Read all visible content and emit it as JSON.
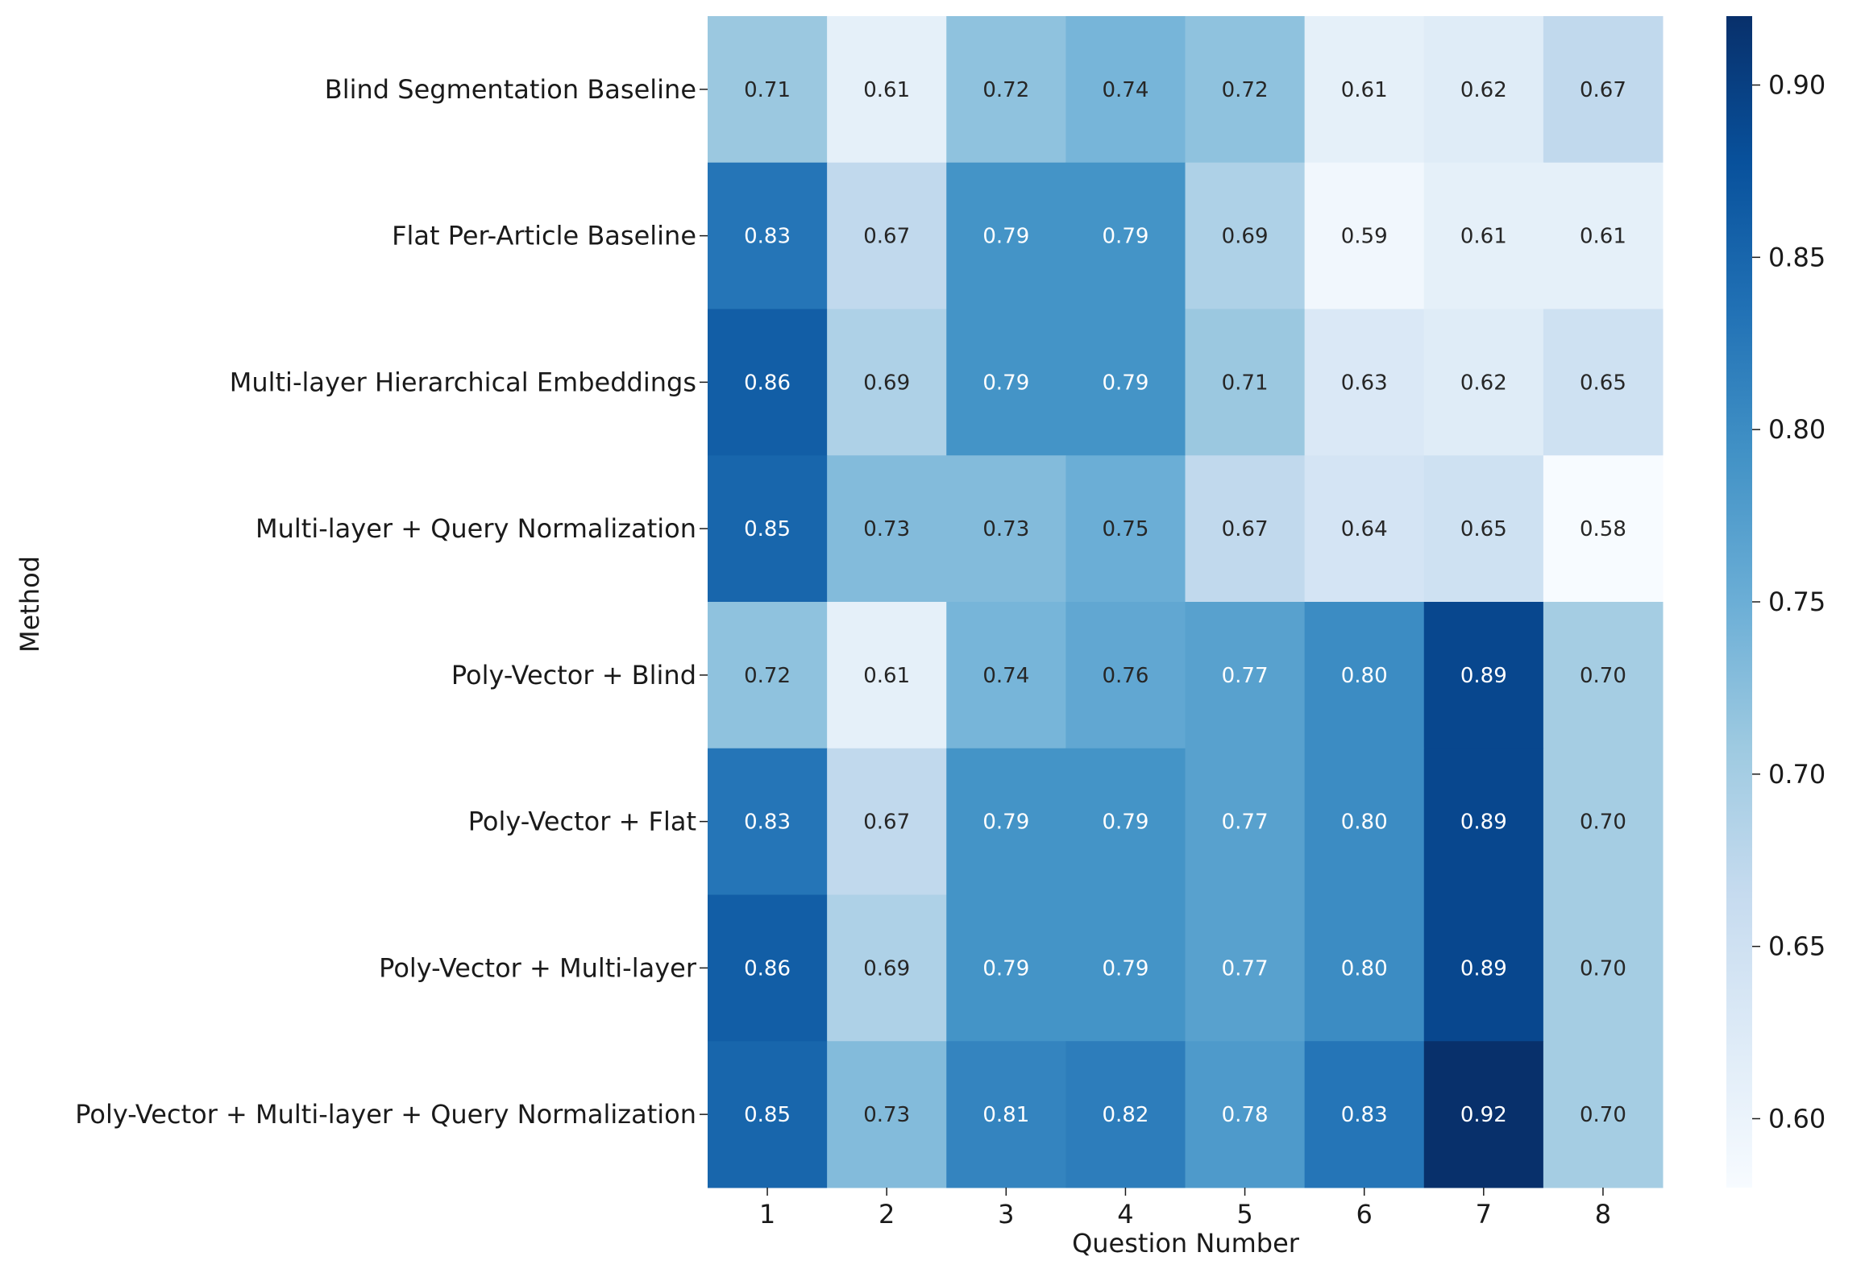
{
  "chart_data": {
    "type": "heatmap",
    "title": "",
    "xlabel": "Question Number",
    "ylabel": "Method",
    "colormap": "Blues",
    "categories": [
      "1",
      "2",
      "3",
      "4",
      "5",
      "6",
      "7",
      "8"
    ],
    "rows": [
      "Blind Segmentation Baseline",
      "Flat Per-Article Baseline",
      "Multi-layer Hierarchical Embeddings",
      "Multi-layer + Query Normalization",
      "Poly-Vector + Blind",
      "Poly-Vector + Flat",
      "Poly-Vector + Multi-layer",
      "Poly-Vector + Multi-layer + Query Normalization"
    ],
    "values": [
      [
        0.71,
        0.61,
        0.72,
        0.74,
        0.72,
        0.61,
        0.62,
        0.67
      ],
      [
        0.83,
        0.67,
        0.79,
        0.79,
        0.69,
        0.59,
        0.61,
        0.61
      ],
      [
        0.86,
        0.69,
        0.79,
        0.79,
        0.71,
        0.63,
        0.62,
        0.65
      ],
      [
        0.85,
        0.73,
        0.73,
        0.75,
        0.67,
        0.64,
        0.65,
        0.58
      ],
      [
        0.72,
        0.61,
        0.74,
        0.76,
        0.77,
        0.8,
        0.89,
        0.7
      ],
      [
        0.83,
        0.67,
        0.79,
        0.79,
        0.77,
        0.8,
        0.89,
        0.7
      ],
      [
        0.86,
        0.69,
        0.79,
        0.79,
        0.77,
        0.8,
        0.89,
        0.7
      ],
      [
        0.85,
        0.73,
        0.81,
        0.82,
        0.78,
        0.83,
        0.92,
        0.7
      ]
    ],
    "colorbar": {
      "vmin": 0.58,
      "vmax": 0.92,
      "ticks": [
        "0.60",
        "0.65",
        "0.70",
        "0.75",
        "0.80",
        "0.85",
        "0.90"
      ]
    }
  }
}
